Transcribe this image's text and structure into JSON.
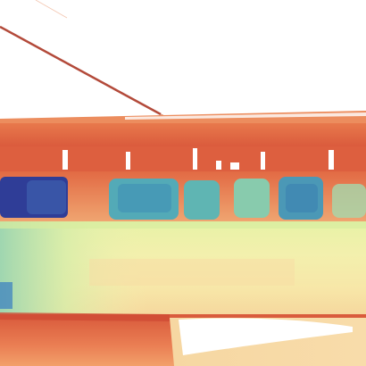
{
  "image": {
    "kind": "false-color depth map",
    "colormap": "spectral",
    "palette": {
      "near": "#b3402e",
      "mid_near": "#e8734a",
      "mid": "#f9c98a",
      "mid_far": "#e6f0a0",
      "far": "#9fd7a8",
      "farther": "#4fa8b8",
      "farthest": "#2e3a95",
      "sky": "#ffffff"
    }
  }
}
